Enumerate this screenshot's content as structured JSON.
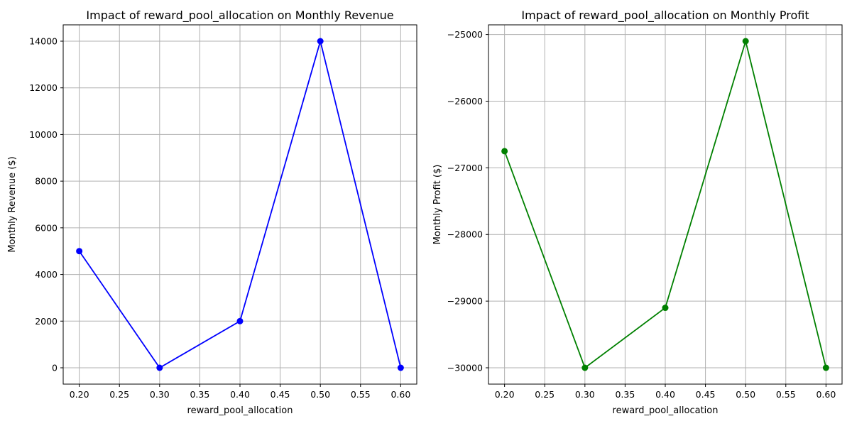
{
  "chart_data": [
    {
      "type": "line",
      "title": "Impact of reward_pool_allocation on Monthly Revenue",
      "xlabel": "reward_pool_allocation",
      "ylabel": "Monthly Revenue ($)",
      "x": [
        0.2,
        0.3,
        0.4,
        0.5,
        0.6
      ],
      "series": [
        {
          "values": [
            5000,
            0,
            2000,
            14000,
            0
          ],
          "color": "#0000ff",
          "marker": "circle"
        }
      ],
      "xlim": [
        0.18,
        0.62
      ],
      "ylim": [
        -700,
        14700
      ],
      "xticks": [
        0.2,
        0.25,
        0.3,
        0.35,
        0.4,
        0.45,
        0.5,
        0.55,
        0.6
      ],
      "xtick_labels": [
        "0.20",
        "0.25",
        "0.30",
        "0.35",
        "0.40",
        "0.45",
        "0.50",
        "0.55",
        "0.60"
      ],
      "yticks": [
        0,
        2000,
        4000,
        6000,
        8000,
        10000,
        12000,
        14000
      ],
      "ytick_labels": [
        "0",
        "2000",
        "4000",
        "6000",
        "8000",
        "10000",
        "12000",
        "14000"
      ],
      "grid": true
    },
    {
      "type": "line",
      "title": "Impact of reward_pool_allocation on Monthly Profit",
      "xlabel": "reward_pool_allocation",
      "ylabel": "Monthly Profit ($)",
      "x": [
        0.2,
        0.3,
        0.4,
        0.5,
        0.6
      ],
      "series": [
        {
          "values": [
            -26750,
            -30000,
            -29100,
            -25100,
            -30000
          ],
          "color": "#008000",
          "marker": "circle"
        }
      ],
      "xlim": [
        0.18,
        0.62
      ],
      "ylim": [
        -30245,
        -24855
      ],
      "xticks": [
        0.2,
        0.25,
        0.3,
        0.35,
        0.4,
        0.45,
        0.5,
        0.55,
        0.6
      ],
      "xtick_labels": [
        "0.20",
        "0.25",
        "0.30",
        "0.35",
        "0.40",
        "0.45",
        "0.50",
        "0.55",
        "0.60"
      ],
      "yticks": [
        -30000,
        -29000,
        -28000,
        -27000,
        -26000,
        -25000
      ],
      "ytick_labels": [
        "−30000",
        "−29000",
        "−28000",
        "−27000",
        "−26000",
        "−25000"
      ],
      "grid": true
    }
  ]
}
